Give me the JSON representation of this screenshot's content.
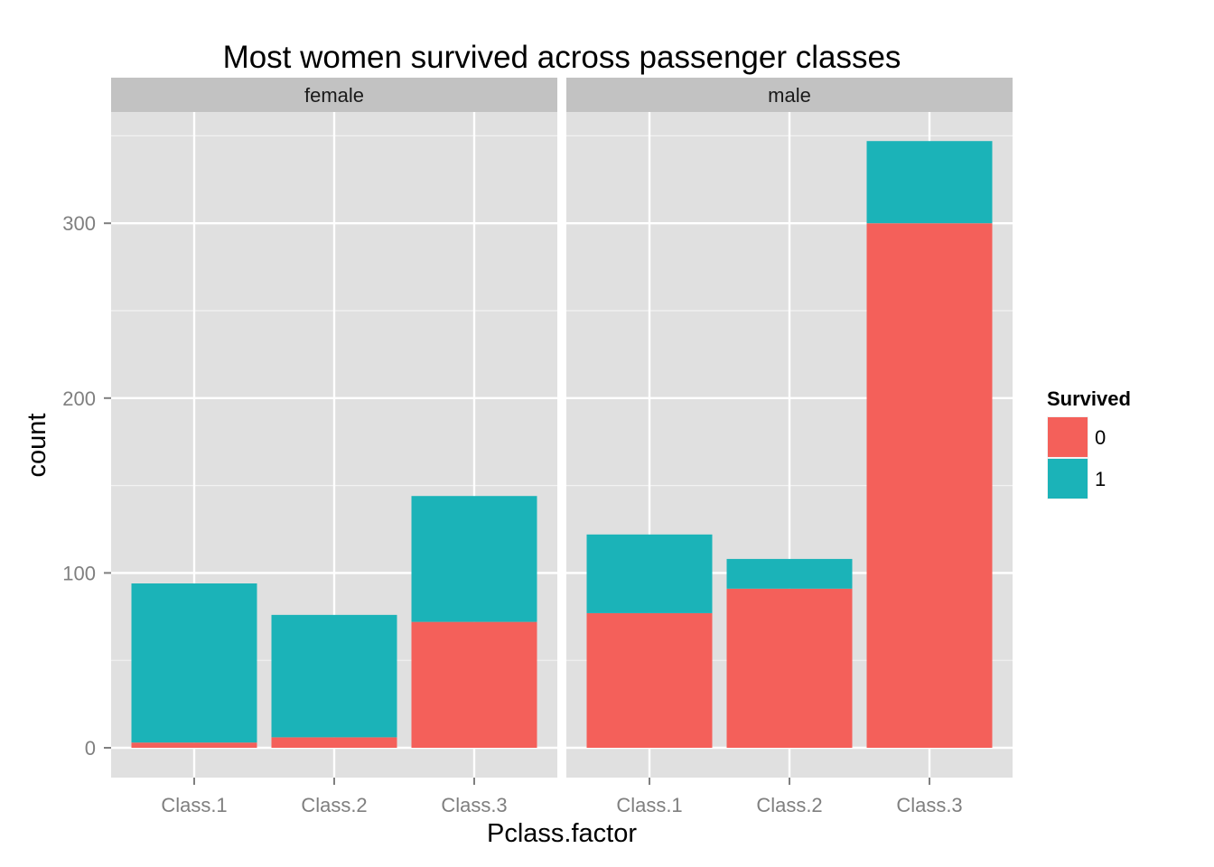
{
  "chart_data": {
    "type": "bar",
    "stacked": true,
    "faceted": true,
    "title": "Most women survived across passenger classes",
    "xlabel": "Pclass.factor",
    "ylabel": "count",
    "ylim": [
      0,
      360
    ],
    "yticks": [
      0,
      100,
      200,
      300
    ],
    "grid": true,
    "legend_position": "right",
    "legend": {
      "title": "Survived",
      "items": [
        {
          "label": "0",
          "color": "#F4605A"
        },
        {
          "label": "1",
          "color": "#1BB3B8"
        }
      ]
    },
    "categories": [
      "Class.1",
      "Class.2",
      "Class.3"
    ],
    "facets": [
      {
        "label": "female",
        "series": [
          {
            "name": "0",
            "values": [
              3,
              6,
              72
            ]
          },
          {
            "name": "1",
            "values": [
              91,
              70,
              72
            ]
          }
        ]
      },
      {
        "label": "male",
        "series": [
          {
            "name": "0",
            "values": [
              77,
              91,
              300
            ]
          },
          {
            "name": "1",
            "values": [
              45,
              17,
              47
            ]
          }
        ]
      }
    ]
  },
  "colors": {
    "panel_background": "#E0E0E0",
    "strip_background": "#C2C2C2",
    "grid_major": "#FFFFFF",
    "grid_minor": "#F2F2F2"
  }
}
